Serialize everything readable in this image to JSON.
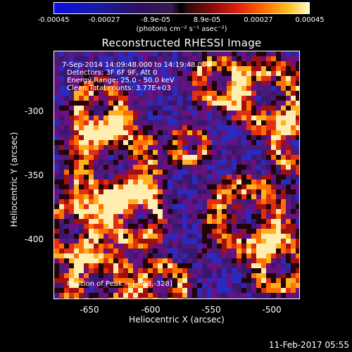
{
  "colorbar": {
    "ticks": [
      "-0.00045",
      "-0.00027",
      "-8.9e-05",
      "8.9e-05",
      "0.00027",
      "0.00045"
    ],
    "unit": "(photons cm⁻² s⁻¹ asec⁻²)",
    "colors": [
      "#0a0fe0",
      "#2a1060",
      "#000000",
      "#8a0a0a",
      "#ff6a00",
      "#fffacd"
    ]
  },
  "title": "Reconstructed RHESSI Image",
  "info": {
    "time_range": "7-Sep-2014 14:09:48.000 to 14:19:48.000",
    "detectors": "Detectors: 3F 6F 9F, Att 0",
    "energy": "Energy Range: 25.0 - 50.0 keV",
    "clean": "Clean     Total counts: 3.77E+03",
    "peak": "Position of Peak = [-638,-328]"
  },
  "axes": {
    "xlabel": "Heliocentric X (arcsec)",
    "ylabel": "Heliocentric Y (arcsec)",
    "xticks": [
      "-650",
      "-600",
      "-550",
      "-500"
    ],
    "yticks": [
      "-300",
      "-350",
      "-400"
    ]
  },
  "footer_date": "11-Feb-2017 05:55"
}
